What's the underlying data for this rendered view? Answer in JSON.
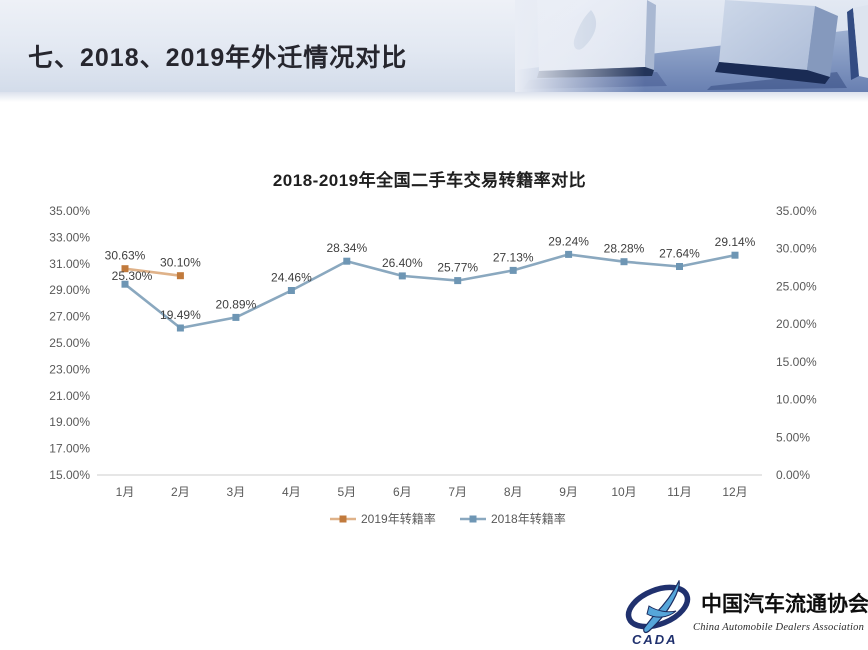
{
  "header": {
    "title": "七、2018、2019年外迁情况对比"
  },
  "chart": {
    "title": "2018-2019年全国二手车交易转籍率对比"
  },
  "chart_data": {
    "type": "line",
    "title": "2018-2019年全国二手车交易转籍率对比",
    "categories": [
      "1月",
      "2月",
      "3月",
      "4月",
      "5月",
      "6月",
      "7月",
      "8月",
      "9月",
      "10月",
      "11月",
      "12月"
    ],
    "series": [
      {
        "name": "2019年转籍率",
        "axis": "left",
        "values": [
          30.63,
          30.1,
          null,
          null,
          null,
          null,
          null,
          null,
          null,
          null,
          null,
          null
        ],
        "line_color": "#dfb289",
        "marker_color": "#c17a3c"
      },
      {
        "name": "2018年转籍率",
        "axis": "right",
        "values": [
          25.3,
          19.49,
          20.89,
          24.46,
          28.34,
          26.4,
          25.77,
          27.13,
          29.24,
          28.28,
          27.64,
          29.14
        ],
        "line_color": "#8aa8bf",
        "marker_color": "#6e96b4",
        "label_dx": [
          7,
          0,
          0,
          0,
          0,
          0,
          0,
          0,
          0,
          0,
          0,
          0
        ],
        "label_dy": [
          5,
          0,
          0,
          0,
          0,
          0,
          0,
          0,
          0,
          0,
          0,
          0
        ]
      }
    ],
    "left_axis": {
      "min": 15,
      "max": 35,
      "ticks": [
        "35.00%",
        "33.00%",
        "31.00%",
        "29.00%",
        "27.00%",
        "25.00%",
        "23.00%",
        "21.00%",
        "19.00%",
        "17.00%",
        "15.00%"
      ]
    },
    "right_axis": {
      "min": 0,
      "max": 35,
      "ticks": [
        "35.00%",
        "30.00%",
        "25.00%",
        "20.00%",
        "15.00%",
        "10.00%",
        "5.00%",
        "0.00%"
      ]
    },
    "grid": false,
    "data_labels": true,
    "legend_position": "bottom"
  },
  "footer_logo": {
    "acronym": "CADA",
    "org_cn": "中国汽车流通协会",
    "org_en": "China Automobile Dealers Association"
  },
  "colors": {
    "axis_text": "#595959",
    "data_label_text": "#3f3f3f",
    "axis_line": "#d6d6d6",
    "legend_text": "#595959"
  }
}
